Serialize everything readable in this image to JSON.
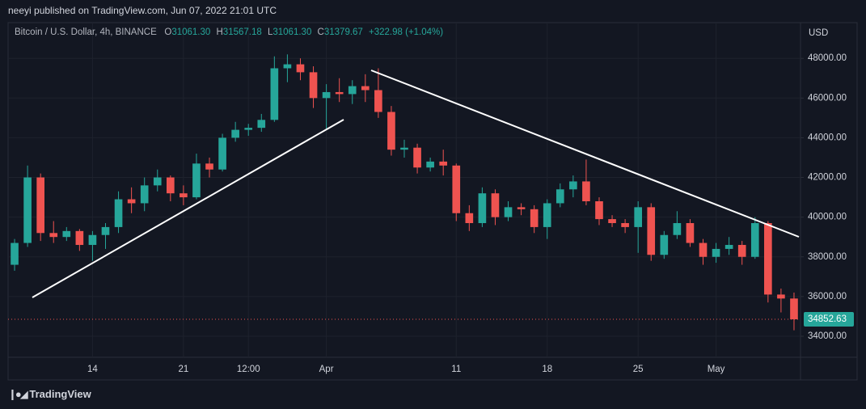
{
  "header": {
    "publisher": "neeyi published on TradingView.com, Jun 07, 2022 21:01 UTC",
    "symbol": "Bitcoin / U.S. Dollar, 4h, BINANCE",
    "o_label": "O",
    "o_value": "31061.30",
    "h_label": "H",
    "h_value": "31567.18",
    "l_label": "L",
    "l_value": "31061.30",
    "c_label": "C",
    "c_value": "31379.67",
    "change": "+322.98 (+1.04%)",
    "brand": "TradingView"
  },
  "chart_data": {
    "type": "candlestick",
    "y_unit": "USD",
    "categories": [
      null,
      null,
      null,
      null,
      null,
      null,
      "14",
      null,
      null,
      null,
      null,
      null,
      null,
      "21",
      null,
      null,
      null,
      null,
      "12:00",
      null,
      null,
      null,
      null,
      null,
      "Apr",
      null,
      null,
      null,
      null,
      null,
      null,
      null,
      null,
      null,
      "11",
      null,
      null,
      null,
      null,
      null,
      null,
      "18",
      null,
      null,
      null,
      null,
      null,
      null,
      "25",
      null,
      null,
      null,
      null,
      null,
      "May",
      null,
      null,
      null,
      null,
      null,
      null
    ],
    "open": [
      37600,
      38700,
      42000,
      39200,
      39000,
      39300,
      38600,
      39100,
      39500,
      40900,
      40700,
      41600,
      42000,
      41200,
      41000,
      42700,
      42400,
      44000,
      44400,
      44500,
      44900,
      47500,
      47700,
      47300,
      46000,
      46300,
      46200,
      46600,
      46400,
      45300,
      43400,
      43500,
      42500,
      42800,
      42600,
      40200,
      39700,
      41200,
      40000,
      40500,
      40400,
      39500,
      40700,
      41400,
      41800,
      40800,
      39900,
      39700,
      39500,
      40500,
      38100,
      39100,
      39700,
      38700,
      38000,
      38400,
      38600,
      38000,
      39700,
      36100,
      35900
    ],
    "high": [
      38900,
      42600,
      42200,
      39800,
      39500,
      39400,
      39300,
      39700,
      41300,
      41500,
      42000,
      42400,
      42100,
      41600,
      43200,
      43000,
      44200,
      44800,
      44700,
      45200,
      48100,
      48200,
      48000,
      47600,
      46700,
      47000,
      46900,
      47200,
      47500,
      45600,
      43900,
      43700,
      43000,
      43400,
      42700,
      40600,
      41500,
      41400,
      40800,
      40700,
      40600,
      40900,
      41700,
      42100,
      42900,
      41000,
      40100,
      39900,
      40800,
      40700,
      39300,
      40300,
      39900,
      38900,
      38700,
      39000,
      38800,
      40000,
      39800,
      36400,
      36200
    ],
    "low": [
      37300,
      38500,
      38800,
      38700,
      38800,
      38300,
      37800,
      38400,
      39200,
      40200,
      40300,
      41300,
      40800,
      40600,
      40900,
      42000,
      42300,
      43800,
      44100,
      44300,
      44800,
      46800,
      46900,
      45500,
      44400,
      45800,
      45700,
      45800,
      45000,
      43100,
      43000,
      42200,
      42300,
      42100,
      39800,
      39300,
      39500,
      39600,
      39800,
      40100,
      39200,
      38900,
      40500,
      41000,
      40600,
      39600,
      39500,
      39200,
      38200,
      37800,
      37900,
      38900,
      38500,
      37600,
      37700,
      38100,
      37600,
      37900,
      35700,
      35200,
      34300
    ],
    "close": [
      38700,
      42000,
      39200,
      39000,
      39300,
      38600,
      39100,
      39500,
      40900,
      40700,
      41600,
      42000,
      41200,
      41000,
      42700,
      42400,
      44000,
      44400,
      44500,
      44900,
      47500,
      47700,
      47300,
      46000,
      46300,
      46200,
      46600,
      46400,
      45300,
      43400,
      43500,
      42500,
      42800,
      42600,
      40200,
      39700,
      41200,
      40000,
      40500,
      40400,
      39500,
      40700,
      41400,
      41800,
      40800,
      39900,
      39700,
      39500,
      40500,
      38100,
      39100,
      39700,
      38700,
      38000,
      38400,
      38600,
      38000,
      39700,
      36100,
      35900,
      34852.63
    ],
    "up_color": "#26a69a",
    "down_color": "#ef5350",
    "ylim": [
      32940,
      49800
    ],
    "yticks": [
      {
        "value": 34000,
        "label": "34000.00"
      },
      {
        "value": 36000,
        "label": "36000.00"
      },
      {
        "value": 38000,
        "label": "38000.00"
      },
      {
        "value": 40000,
        "label": "40000.00"
      },
      {
        "value": 42000,
        "label": "42000.00"
      },
      {
        "value": 44000,
        "label": "44000.00"
      },
      {
        "value": 46000,
        "label": "46000.00"
      },
      {
        "value": 48000,
        "label": "48000.00"
      }
    ],
    "grid": true
  }
}
